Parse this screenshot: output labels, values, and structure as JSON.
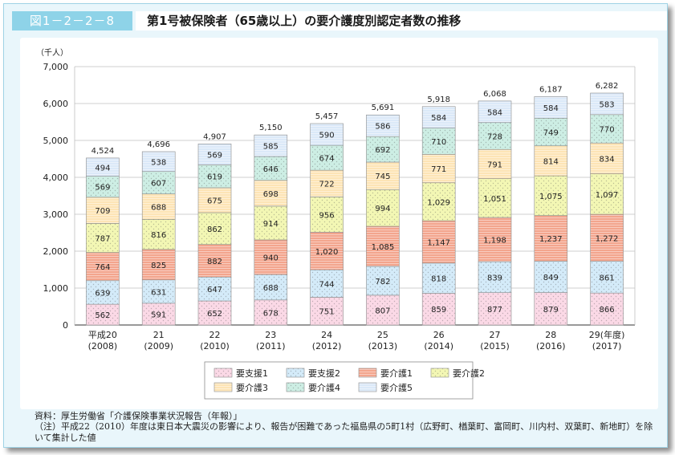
{
  "figure": {
    "number": "図1－2－2－8",
    "title": "第1号被保険者（65歳以上）の要介護度別認定者数の推移"
  },
  "source": "資料：厚生労働省「介護保険事業状況報告（年報）」",
  "note": "（注）平成22（2010）年度は東日本大震災の影響により、報告が困難であった福島県の5町1村（広野町、楢葉町、富岡町、川内村、双葉町、新地町）を除いて集計した値",
  "colors": {
    "frame_bg": "#e9f6fb",
    "accent": "#8ed3e8"
  },
  "chart_data": {
    "type": "bar",
    "stacked": true,
    "title": "",
    "ylabel": "（千人）",
    "xlabel_suffix": "(年度)",
    "ylim": [
      0,
      7000
    ],
    "yticks": [
      0,
      1000,
      2000,
      3000,
      4000,
      5000,
      6000,
      7000
    ],
    "ytick_labels": [
      "0",
      "1,000",
      "2,000",
      "3,000",
      "4,000",
      "5,000",
      "6,000",
      "7,000"
    ],
    "grid": true,
    "legend_position": "bottom-center",
    "categories": [
      {
        "line1": "平成20",
        "line2": "(2008)"
      },
      {
        "line1": "21",
        "line2": "(2009)"
      },
      {
        "line1": "22",
        "line2": "(2010)"
      },
      {
        "line1": "23",
        "line2": "(2011)"
      },
      {
        "line1": "24",
        "line2": "(2012)"
      },
      {
        "line1": "25",
        "line2": "(2013)"
      },
      {
        "line1": "26",
        "line2": "(2014)"
      },
      {
        "line1": "27",
        "line2": "(2015)"
      },
      {
        "line1": "28",
        "line2": "(2016)"
      },
      {
        "line1": "29",
        "line2": "(2017)"
      }
    ],
    "totals": [
      4524,
      4696,
      4907,
      5150,
      5457,
      5691,
      5918,
      6068,
      6187,
      6282
    ],
    "total_labels": [
      "4,524",
      "4,696",
      "4,907",
      "5,150",
      "5,457",
      "5,691",
      "5,918",
      "6,068",
      "6,187",
      "6,282"
    ],
    "series": [
      {
        "name": "要支援1",
        "color": "#fbd9e6",
        "pattern": "dots",
        "values": [
          562,
          591,
          652,
          678,
          751,
          807,
          859,
          877,
          879,
          866
        ],
        "labels": [
          "562",
          "591",
          "652",
          "678",
          "751",
          "807",
          "859",
          "877",
          "879",
          "866"
        ]
      },
      {
        "name": "要支援2",
        "color": "#d4ebf9",
        "pattern": "dots",
        "values": [
          639,
          631,
          647,
          688,
          744,
          782,
          818,
          839,
          849,
          861
        ],
        "labels": [
          "639",
          "631",
          "647",
          "688",
          "744",
          "782",
          "818",
          "839",
          "849",
          "861"
        ]
      },
      {
        "name": "要介護1",
        "color": "#f3a58d",
        "pattern": "hlines",
        "values": [
          764,
          825,
          882,
          940,
          1020,
          1085,
          1147,
          1198,
          1237,
          1272
        ],
        "labels": [
          "764",
          "825",
          "882",
          "940",
          "1,020",
          "1,085",
          "1,147",
          "1,198",
          "1,237",
          "1,272"
        ]
      },
      {
        "name": "要介護2",
        "color": "#f3f7b4",
        "pattern": "dots",
        "values": [
          787,
          816,
          862,
          914,
          956,
          994,
          1029,
          1051,
          1075,
          1097
        ],
        "labels": [
          "787",
          "816",
          "862",
          "914",
          "956",
          "994",
          "1,029",
          "1,051",
          "1,075",
          "1,097"
        ]
      },
      {
        "name": "要介護3",
        "color": "#fde4b5",
        "pattern": "hlines",
        "values": [
          709,
          688,
          675,
          698,
          722,
          745,
          771,
          791,
          814,
          834
        ],
        "labels": [
          "709",
          "688",
          "675",
          "698",
          "722",
          "745",
          "771",
          "791",
          "814",
          "834"
        ]
      },
      {
        "name": "要介護4",
        "color": "#cdeee4",
        "pattern": "dots",
        "values": [
          569,
          607,
          619,
          646,
          674,
          692,
          710,
          728,
          749,
          770
        ],
        "labels": [
          "569",
          "607",
          "619",
          "646",
          "674",
          "692",
          "710",
          "728",
          "749",
          "770"
        ]
      },
      {
        "name": "要介護5",
        "color": "#dbe9f8",
        "pattern": "hlines",
        "values": [
          494,
          538,
          569,
          585,
          590,
          586,
          584,
          584,
          584,
          583
        ],
        "labels": [
          "494",
          "538",
          "569",
          "585",
          "590",
          "586",
          "584",
          "584",
          "584",
          "583"
        ]
      }
    ]
  }
}
